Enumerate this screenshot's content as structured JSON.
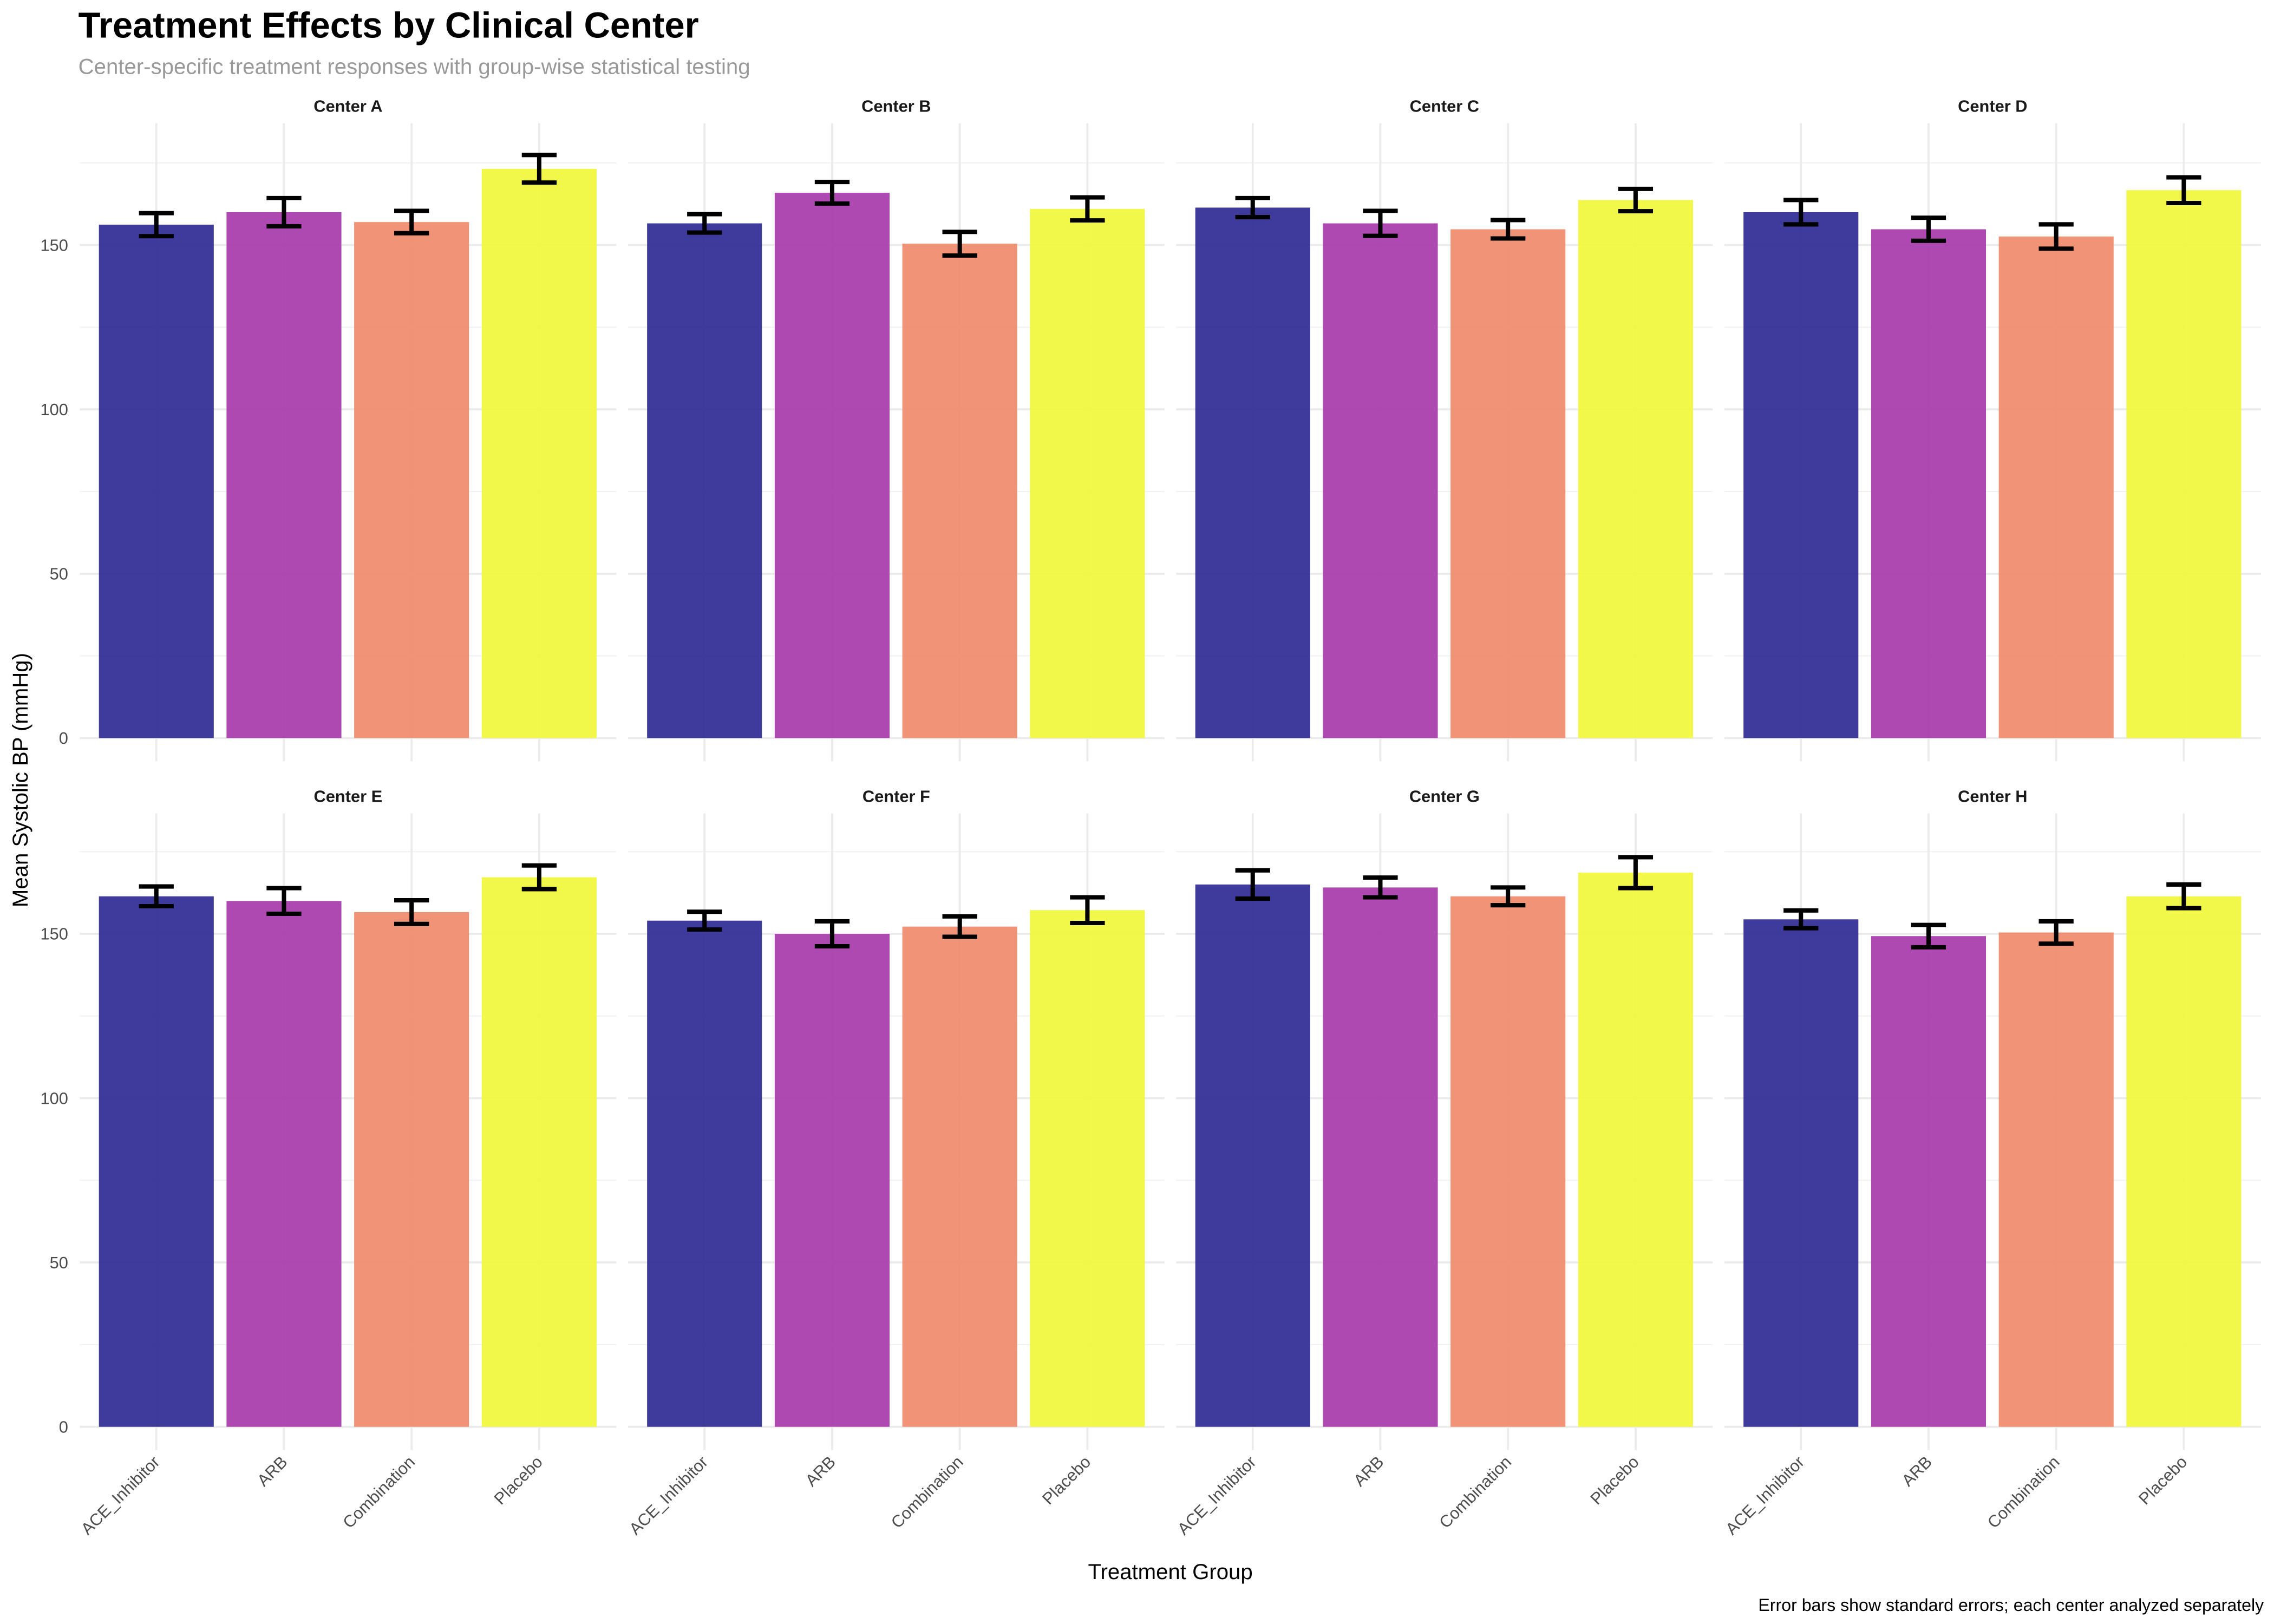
{
  "chart_data": {
    "type": "bar",
    "title": "Treatment Effects by Clinical Center",
    "subtitle": "Center-specific treatment responses with group-wise statistical testing",
    "xlabel": "Treatment Group",
    "ylabel": "Mean Systolic BP (mmHg)",
    "caption": "Error bars show standard errors; each center analyzed separately",
    "ylim": [
      0,
      185
    ],
    "yticks": [
      0,
      50,
      100,
      150
    ],
    "grid": true,
    "legend": "none",
    "categories": [
      "ACE_Inhibitor",
      "ARB",
      "Combination",
      "Placebo"
    ],
    "colors": [
      "#2f2a94",
      "#a83aab",
      "#ef8a6a",
      "#f1f73a"
    ],
    "panels": [
      {
        "name": "Center A",
        "values": [
          156.2,
          160.0,
          157.0,
          173.2
        ],
        "se": [
          3.5,
          4.3,
          3.4,
          4.2
        ]
      },
      {
        "name": "Center B",
        "values": [
          156.6,
          165.9,
          150.4,
          161.0
        ],
        "se": [
          2.8,
          3.3,
          3.6,
          3.5
        ]
      },
      {
        "name": "Center C",
        "values": [
          161.4,
          156.6,
          154.8,
          163.7
        ],
        "se": [
          2.9,
          3.8,
          2.8,
          3.4
        ]
      },
      {
        "name": "Center D",
        "values": [
          160.0,
          154.8,
          152.6,
          166.7
        ],
        "se": [
          3.7,
          3.5,
          3.7,
          3.9
        ]
      },
      {
        "name": "Center E",
        "values": [
          161.4,
          160.0,
          156.6,
          167.2
        ],
        "se": [
          3.0,
          3.9,
          3.6,
          3.6
        ]
      },
      {
        "name": "Center F",
        "values": [
          154.0,
          150.0,
          152.2,
          157.2
        ],
        "se": [
          2.7,
          3.8,
          3.1,
          3.9
        ]
      },
      {
        "name": "Center G",
        "values": [
          165.0,
          164.1,
          161.4,
          168.6
        ],
        "se": [
          4.3,
          3.0,
          2.7,
          4.7
        ]
      },
      {
        "name": "Center H",
        "values": [
          154.4,
          149.3,
          150.4,
          161.4
        ],
        "se": [
          2.7,
          3.4,
          3.4,
          3.6
        ]
      }
    ]
  }
}
